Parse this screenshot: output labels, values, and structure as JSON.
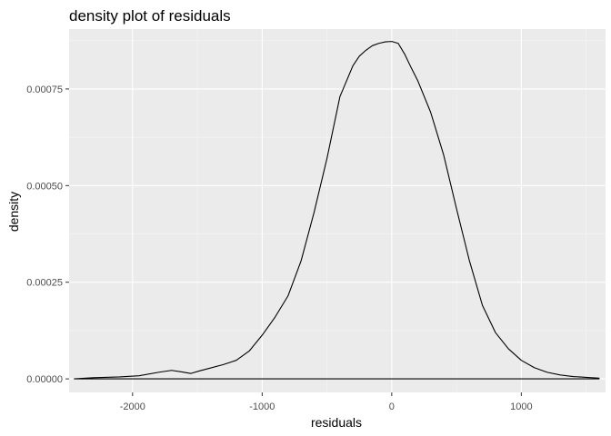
{
  "chart_data": {
    "type": "area",
    "title": "density plot of residuals",
    "xlabel": "residuals",
    "ylabel": "density",
    "xlim": [
      -2490,
      1650
    ],
    "ylim": [
      -3.5e-05,
      0.000905
    ],
    "x_ticks": [
      -2000,
      -1000,
      0,
      1000
    ],
    "x_tick_labels": [
      "-2000",
      "-1000",
      "0",
      "1000"
    ],
    "y_ticks": [
      0,
      0.00025,
      0.0005,
      0.00075
    ],
    "y_tick_labels": [
      "0.00000",
      "0.00025",
      "0.00050",
      "0.00075"
    ],
    "grid": true,
    "series": [
      {
        "x": [
          -2450,
          -2300,
          -2100,
          -1950,
          -1800,
          -1700,
          -1620,
          -1550,
          -1480,
          -1400,
          -1300,
          -1200,
          -1100,
          -1000,
          -900,
          -800,
          -700,
          -600,
          -500,
          -400,
          -300,
          -250,
          -200,
          -150,
          -100,
          -50,
          0,
          50,
          100,
          150,
          200,
          300,
          400,
          500,
          600,
          700,
          800,
          900,
          1000,
          1100,
          1200,
          1300,
          1400,
          1500,
          1600
        ],
        "y": [
          0.0,
          3e-06,
          5e-06,
          8e-06,
          1.7e-05,
          2.2e-05,
          1.8e-05,
          1.4e-05,
          2.1e-05,
          2.8e-05,
          3.7e-05,
          4.8e-05,
          7.2e-05,
          0.000113,
          0.00016,
          0.000215,
          0.000305,
          0.00043,
          0.00057,
          0.00073,
          0.00081,
          0.000835,
          0.00085,
          0.000862,
          0.000868,
          0.000872,
          0.000873,
          0.000868,
          0.00084,
          0.000805,
          0.000772,
          0.00069,
          0.00058,
          0.00044,
          0.000305,
          0.00019,
          0.00012,
          7.8e-05,
          4.8e-05,
          2.9e-05,
          1.7e-05,
          1e-05,
          6e-06,
          4e-06,
          2e-06
        ]
      }
    ]
  },
  "colors": {
    "panel": "#ebebeb",
    "grid_major": "#ffffff",
    "grid_minor": "#f5f5f5",
    "line": "#000000",
    "tick": "#333333",
    "tick_label": "#4d4d4d"
  }
}
